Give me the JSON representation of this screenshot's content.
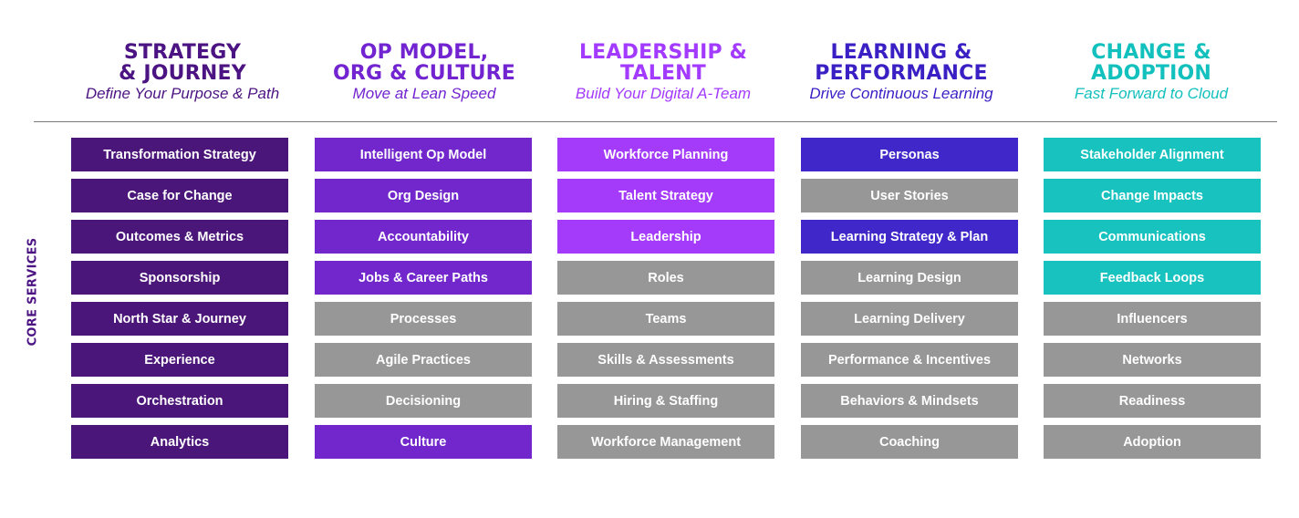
{
  "side_label": "CORE SERVICES",
  "side_label_color": "#4b1482",
  "inactive_color": "#979797",
  "columns": [
    {
      "title": "STRATEGY\n& JOURNEY",
      "subtitle": "Define Your Purpose & Path",
      "title_color": "#4b1482",
      "subtitle_color": "#4b1482",
      "active_color": "#4b1679",
      "items": [
        {
          "label": "Transformation Strategy",
          "active": true
        },
        {
          "label": "Case for Change",
          "active": true
        },
        {
          "label": "Outcomes & Metrics",
          "active": true
        },
        {
          "label": "Sponsorship",
          "active": true
        },
        {
          "label": "North Star & Journey",
          "active": true
        },
        {
          "label": "Experience",
          "active": true
        },
        {
          "label": "Orchestration",
          "active": true
        },
        {
          "label": "Analytics",
          "active": true
        }
      ]
    },
    {
      "title": "OP MODEL,\nORG & CULTURE",
      "subtitle": "Move at Lean Speed",
      "title_color": "#7124d0",
      "subtitle_color": "#7124d0",
      "active_color": "#7227cc",
      "items": [
        {
          "label": "Intelligent Op Model",
          "active": true
        },
        {
          "label": "Org Design",
          "active": true
        },
        {
          "label": "Accountability",
          "active": true
        },
        {
          "label": "Jobs & Career Paths",
          "active": true
        },
        {
          "label": "Processes",
          "active": false
        },
        {
          "label": "Agile Practices",
          "active": false
        },
        {
          "label": "Decisioning",
          "active": false
        },
        {
          "label": "Culture",
          "active": true
        }
      ]
    },
    {
      "title": "LEADERSHIP &\nTALENT",
      "subtitle": "Build Your Digital A-Team",
      "title_color": "#a33aff",
      "subtitle_color": "#a33aff",
      "active_color": "#a53bfa",
      "items": [
        {
          "label": "Workforce Planning",
          "active": true
        },
        {
          "label": "Talent Strategy",
          "active": true
        },
        {
          "label": "Leadership",
          "active": true
        },
        {
          "label": "Roles",
          "active": false
        },
        {
          "label": "Teams",
          "active": false
        },
        {
          "label": "Skills & Assessments",
          "active": false
        },
        {
          "label": "Hiring & Staffing",
          "active": false
        },
        {
          "label": "Workforce Management",
          "active": false
        }
      ]
    },
    {
      "title": "LEARNING &\nPERFORMANCE",
      "subtitle": "Drive Continuous Learning",
      "title_color": "#3a1fc4",
      "subtitle_color": "#3a1fc4",
      "active_color": "#3f27c9",
      "items": [
        {
          "label": "Personas",
          "active": true
        },
        {
          "label": "User Stories",
          "active": false
        },
        {
          "label": "Learning Strategy & Plan",
          "active": true
        },
        {
          "label": "Learning Design",
          "active": false
        },
        {
          "label": "Learning Delivery",
          "active": false
        },
        {
          "label": "Performance & Incentives",
          "active": false
        },
        {
          "label": "Behaviors & Mindsets",
          "active": false
        },
        {
          "label": "Coaching",
          "active": false
        }
      ]
    },
    {
      "title": "CHANGE &\nADOPTION",
      "subtitle": "Fast Forward to Cloud",
      "title_color": "#12c0bd",
      "subtitle_color": "#12c0bd",
      "active_color": "#17c2bf",
      "items": [
        {
          "label": "Stakeholder Alignment",
          "active": true
        },
        {
          "label": "Change Impacts",
          "active": true
        },
        {
          "label": "Communications",
          "active": true
        },
        {
          "label": "Feedback Loops",
          "active": true
        },
        {
          "label": "Influencers",
          "active": false
        },
        {
          "label": "Networks",
          "active": false
        },
        {
          "label": "Readiness",
          "active": false
        },
        {
          "label": "Adoption",
          "active": false
        }
      ]
    }
  ]
}
